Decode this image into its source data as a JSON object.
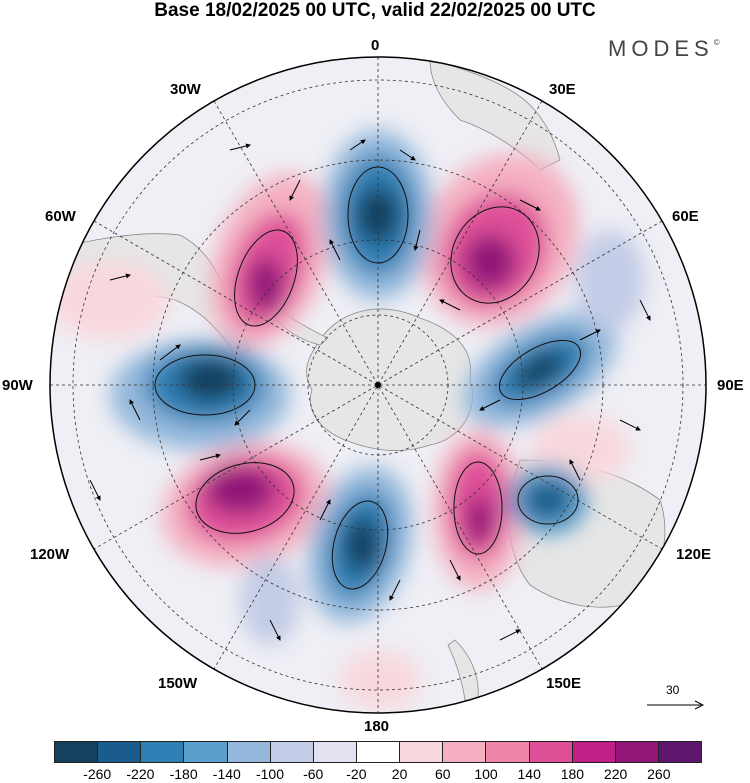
{
  "title": "Base 18/02/2025 00 UTC, valid 22/02/2025 00 UTC",
  "brand": "MODES",
  "brand_mark": "©",
  "longitude_labels": [
    "0",
    "30E",
    "60E",
    "90E",
    "120E",
    "150E",
    "180",
    "150W",
    "120W",
    "90W",
    "60W",
    "30W"
  ],
  "reference_vector": {
    "value": "30"
  },
  "colorbar": {
    "ticks": [
      "-260",
      "-220",
      "-180",
      "-140",
      "-100",
      "-60",
      "-20",
      "20",
      "60",
      "100",
      "140",
      "180",
      "220",
      "260"
    ],
    "colors": [
      "#15415f",
      "#1a5d8c",
      "#2f7fb4",
      "#5a9fcb",
      "#93b8db",
      "#c3cce6",
      "#e4e2f0",
      "#ffffff",
      "#f8d8dd",
      "#f4b0c1",
      "#ee86aa",
      "#de4f98",
      "#c01f86",
      "#911678",
      "#5e166e"
    ]
  },
  "map": {
    "projection": "south-polar-stereographic",
    "land_color": "#e8e8e8",
    "anomaly_centers": [
      {
        "sign": "negative",
        "level": -260,
        "colors": "blue"
      },
      {
        "sign": "negative",
        "level": -260,
        "colors": "blue"
      },
      {
        "sign": "negative",
        "level": -220,
        "colors": "blue"
      },
      {
        "sign": "negative",
        "level": -220,
        "colors": "blue"
      },
      {
        "sign": "negative",
        "level": -180,
        "colors": "blue"
      },
      {
        "sign": "positive",
        "level": 260,
        "colors": "magenta"
      },
      {
        "sign": "positive",
        "level": 220,
        "colors": "magenta"
      },
      {
        "sign": "positive",
        "level": 220,
        "colors": "magenta"
      },
      {
        "sign": "positive",
        "level": 220,
        "colors": "magenta"
      }
    ]
  }
}
